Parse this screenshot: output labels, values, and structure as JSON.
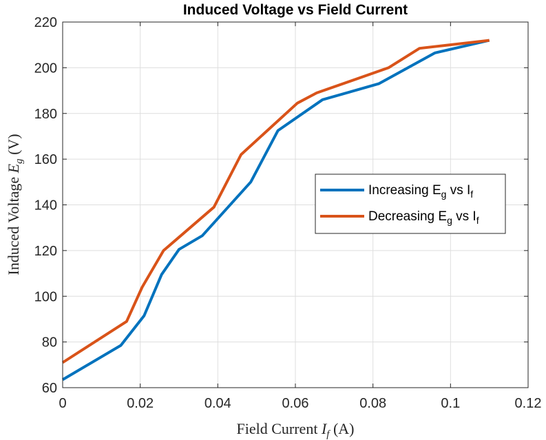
{
  "chart_data": {
    "type": "line",
    "title": "Induced Voltage vs Field Current",
    "xlabel": {
      "prefix": "Field Current ",
      "var": "I",
      "sub": "f",
      "suffix": " (A)"
    },
    "ylabel": {
      "prefix": "Induced Voltage ",
      "var": "E",
      "sub": "g",
      "suffix": " (V)"
    },
    "xlim": [
      0,
      0.12
    ],
    "ylim": [
      60,
      220
    ],
    "xticks": [
      0,
      0.02,
      0.04,
      0.06,
      0.08,
      0.1,
      0.12
    ],
    "xtick_labels": [
      "0",
      "0.02",
      "0.04",
      "0.06",
      "0.08",
      "0.1",
      "0.12"
    ],
    "yticks": [
      60,
      80,
      100,
      120,
      140,
      160,
      180,
      200,
      220
    ],
    "ytick_labels": [
      "60",
      "80",
      "100",
      "120",
      "140",
      "160",
      "180",
      "200",
      "220"
    ],
    "grid": true,
    "legend_position": "center-right",
    "series": [
      {
        "name": "Increasing E_g vs I_f",
        "label_main": "Increasing E",
        "label_sub1": "g",
        "label_mid": " vs I",
        "label_sub2": "f",
        "color": "#0072BD",
        "x": [
          0,
          0.015,
          0.021,
          0.0255,
          0.03,
          0.036,
          0.0485,
          0.0555,
          0.067,
          0.0815,
          0.096,
          0.11
        ],
        "y": [
          63.5,
          78.5,
          91.5,
          109.5,
          120.5,
          126.5,
          150,
          172.5,
          186,
          193,
          206.5,
          212
        ]
      },
      {
        "name": "Decreasing E_g vs I_f",
        "label_main": "Decreasing E",
        "label_sub1": "g",
        "label_mid": " vs I",
        "label_sub2": "f",
        "color": "#D95319",
        "x": [
          0,
          0.0165,
          0.0205,
          0.026,
          0.039,
          0.046,
          0.0605,
          0.0655,
          0.084,
          0.092,
          0.11
        ],
        "y": [
          71,
          89,
          104,
          120,
          139,
          162,
          184.5,
          189,
          200,
          208.5,
          212
        ]
      }
    ]
  }
}
